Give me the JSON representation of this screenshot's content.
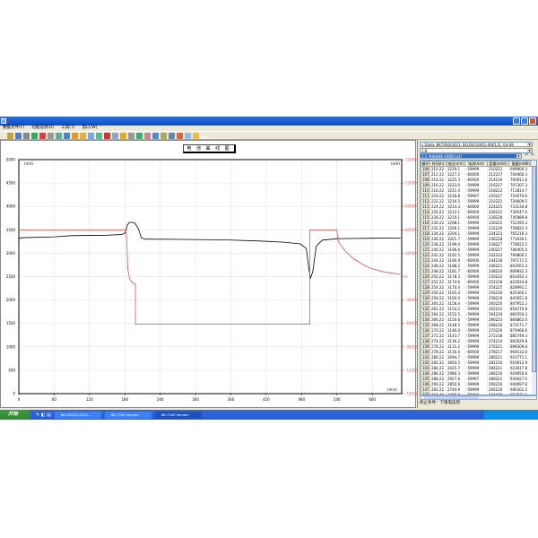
{
  "window": {
    "title": "BK-7000  Version 6.8.56 - [c:\\Data_BK7000\\2021_04\\20210401-090111_04-09.]"
  },
  "menu": [
    "数据文件(F)",
    "功能选项(O)",
    "工具(T)",
    "窗口(W)"
  ],
  "chart": {
    "title": "电 池 曲 线 图",
    "left_unit": "(mV)",
    "right_unit": "(mA)",
    "x_unit": "(min)"
  },
  "chart_data": {
    "type": "line",
    "title": "电 池 曲 线 图",
    "xlim": [
      0,
      650
    ],
    "xticks": [
      0,
      60,
      120,
      180,
      240,
      300,
      360,
      420,
      480,
      540,
      600
    ],
    "ylim_left": [
      0,
      5000
    ],
    "yticks_left": [
      5000,
      4500,
      4000,
      3500,
      3000,
      2500,
      2000,
      1500,
      1000,
      500,
      0
    ],
    "ylim_right": [
      -150000,
      150000
    ],
    "yticks_right": [
      150000,
      120000,
      90000,
      60000,
      30000,
      0,
      -30000,
      -60000,
      -90000,
      -120000,
      -150000
    ],
    "grid": true,
    "series": [
      {
        "axis": "left",
        "color": "#000000",
        "points": [
          [
            0,
            3310
          ],
          [
            3,
            3330
          ],
          [
            60,
            3350
          ],
          [
            90,
            3375
          ],
          [
            150,
            3385
          ],
          [
            175,
            3400
          ],
          [
            181,
            3440
          ],
          [
            184,
            3600
          ],
          [
            188,
            3660
          ],
          [
            197,
            3650
          ],
          [
            203,
            3520
          ],
          [
            208,
            3330
          ],
          [
            214,
            3300
          ],
          [
            280,
            3295
          ],
          [
            350,
            3285
          ],
          [
            410,
            3260
          ],
          [
            450,
            3235
          ],
          [
            478,
            3200
          ],
          [
            488,
            3100
          ],
          [
            492,
            2700
          ],
          [
            495,
            2470
          ],
          [
            499,
            2600
          ],
          [
            505,
            3150
          ],
          [
            515,
            3280
          ],
          [
            540,
            3310
          ],
          [
            600,
            3320
          ],
          [
            648,
            3325
          ]
        ]
      },
      {
        "axis": "right",
        "color": "#e05050",
        "points": [
          [
            0,
            60000
          ],
          [
            181,
            60000
          ],
          [
            183,
            50000
          ],
          [
            185,
            10000
          ],
          [
            188,
            -3000
          ],
          [
            193,
            -8000
          ],
          [
            198,
            -9000
          ],
          [
            198,
            -61000
          ],
          [
            494,
            -61000
          ],
          [
            494,
            60000
          ],
          [
            540,
            60000
          ],
          [
            542,
            45000
          ],
          [
            555,
            32000
          ],
          [
            570,
            22000
          ],
          [
            585,
            15000
          ],
          [
            600,
            10000
          ],
          [
            620,
            6000
          ],
          [
            648,
            3000
          ]
        ]
      }
    ]
  },
  "right_panel": {
    "path": "c:\\Data_BK7000\\2021_04\\20210401-090111_04-09",
    "channel": "1:8",
    "curve": "1:1 充电曲线 (0000.txt)",
    "columns": [
      "循环",
      "时间(h)",
      "电压(mV)",
      "电流(mA)",
      "容量(mAh)",
      "能量(mWh)"
    ],
    "rows": [
      [
        "106",
        "210.22",
        "3229.1",
        "-59999",
        "210221",
        "699900.3"
      ],
      [
        "107",
        "212.22",
        "3227.2",
        "-60000",
        "212227",
        "704466.3"
      ],
      [
        "108",
        "214.22",
        "3225.3",
        "-60000",
        "214219",
        "700911.6"
      ],
      [
        "109",
        "216.22",
        "3223.0",
        "-59999",
        "216227",
        "707307.3"
      ],
      [
        "110",
        "218.22",
        "3221.0",
        "-59999",
        "218222",
        "713814.7"
      ],
      [
        "111",
        "220.22",
        "3218.8",
        "-59997",
        "220227",
        "720070.6"
      ],
      [
        "112",
        "222.22",
        "3216.5",
        "-59999",
        "222222",
        "726609.5"
      ],
      [
        "113",
        "224.22",
        "3214.3",
        "-60000",
        "224225",
        "733130.8"
      ],
      [
        "114",
        "226.22",
        "3212.1",
        "-60000",
        "226222",
        "739547.0"
      ],
      [
        "115",
        "228.22",
        "3210.1",
        "-60000",
        "228228",
        "745989.8"
      ],
      [
        "116",
        "230.22",
        "3208.1",
        "-59999",
        "230222",
        "752395.3"
      ],
      [
        "117",
        "232.22",
        "3206.1",
        "-59999",
        "232229",
        "758822.4"
      ],
      [
        "118",
        "234.22",
        "3204.1",
        "-59999",
        "234223",
        "765216.3"
      ],
      [
        "119",
        "236.22",
        "3201.7",
        "-59999",
        "236228",
        "771630.1"
      ],
      [
        "120",
        "238.22",
        "3199.0",
        "-59999",
        "238227",
        "778022.5"
      ],
      [
        "121",
        "240.22",
        "3196.6",
        "-59999",
        "240227",
        "784405.4"
      ],
      [
        "122",
        "242.22",
        "3192.5",
        "-59999",
        "242222",
        "790800.1"
      ],
      [
        "123",
        "244.22",
        "3190.9",
        "-60000",
        "244218",
        "797171.5"
      ],
      [
        "124",
        "246.22",
        "3188.2",
        "-59999",
        "246221",
        "803561.3"
      ],
      [
        "125",
        "248.22",
        "3181.7",
        "-60000",
        "248220",
        "809832.3"
      ],
      [
        "126",
        "250.22",
        "3178.3",
        "-59999",
        "250222",
        "816292.3"
      ],
      [
        "127",
        "252.22",
        "3174.6",
        "-60000",
        "252218",
        "822624.8"
      ],
      [
        "128",
        "254.22",
        "3170.4",
        "-59999",
        "254225",
        "828991.1"
      ],
      [
        "129",
        "256.22",
        "3165.4",
        "-59999",
        "256216",
        "835300.1"
      ],
      [
        "130",
        "258.22",
        "3160.0",
        "-59999",
        "258220",
        "841651.8"
      ],
      [
        "131",
        "260.22",
        "3158.4",
        "-59999",
        "260220",
        "847952.2"
      ],
      [
        "132",
        "262.22",
        "3154.2",
        "-59999",
        "262222",
        "854270.8"
      ],
      [
        "133",
        "264.22",
        "3152.5",
        "-59999",
        "264220",
        "860559.3"
      ],
      [
        "134",
        "266.22",
        "3150.6",
        "-59999",
        "266223",
        "866862.0"
      ],
      [
        "135",
        "268.22",
        "3148.5",
        "-59999",
        "268226",
        "873171.7"
      ],
      [
        "136",
        "270.22",
        "3146.0",
        "-59999",
        "270226",
        "879466.6"
      ],
      [
        "137",
        "272.22",
        "3143.7",
        "-59999",
        "272218",
        "885749.3"
      ],
      [
        "138",
        "274.22",
        "3136.2",
        "-59999",
        "274214",
        "892029.8"
      ],
      [
        "139",
        "276.22",
        "3131.2",
        "-59999",
        "276221",
        "898309.6"
      ],
      [
        "140",
        "278.22",
        "3116.0",
        "-60000",
        "278217",
        "904532.6"
      ],
      [
        "141",
        "280.22",
        "3094.7",
        "-59999",
        "280221",
        "910771.1"
      ],
      [
        "142",
        "282.22",
        "3063.5",
        "-59999",
        "282216",
        "916912.9"
      ],
      [
        "143",
        "284.22",
        "3025.7",
        "-59999",
        "284221",
        "923017.8"
      ],
      [
        "144",
        "286.22",
        "2980.3",
        "-59999",
        "286216",
        "929050.6"
      ],
      [
        "145",
        "288.22",
        "2927.6",
        "-59997",
        "288221",
        "934927.5"
      ],
      [
        "146",
        "290.22",
        "2850.6",
        "-59999",
        "290216",
        "940697.6"
      ],
      [
        "147",
        "292.22",
        "2744.9",
        "-59999",
        "292220",
        "946301.5"
      ],
      [
        "148",
        "294.40",
        "2495.9",
        "-59999",
        "294470",
        "951571.1"
      ]
    ],
    "status": "终止条件：下限电压到"
  },
  "taskbar": {
    "start": "开始",
    "tasks": [
      "BK-7DOOL(2021...",
      "BK-7300  Version",
      "BK-7300  Version"
    ]
  }
}
